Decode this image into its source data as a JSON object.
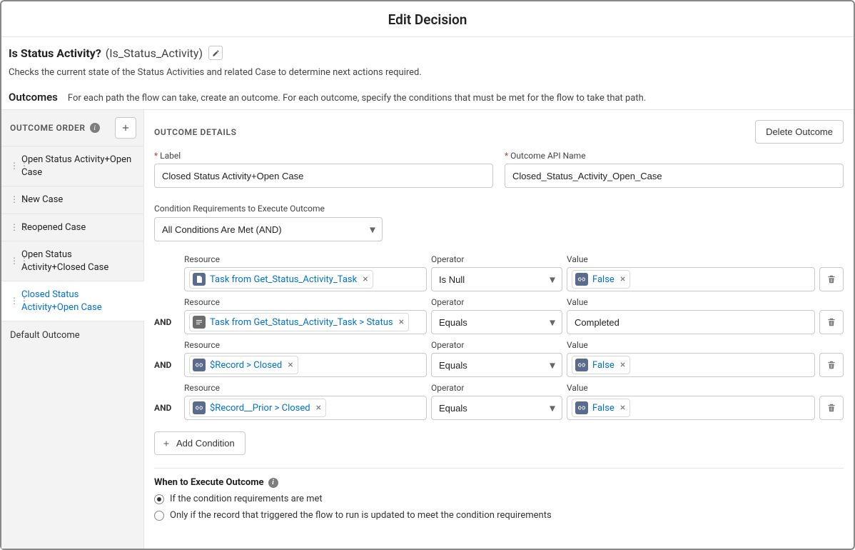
{
  "title": "Edit Decision",
  "decision": {
    "label": "Is Status Activity?",
    "apiName": "(Is_Status_Activity)",
    "description": "Checks the current state of the Status Activities and related Case to determine next actions required."
  },
  "outcomesSection": {
    "heading": "Outcomes",
    "help": "For each path the flow can take, create an outcome. For each outcome, specify the conditions that must be met for the flow to take that path."
  },
  "sidebar": {
    "heading": "OUTCOME ORDER",
    "items": [
      {
        "label": "Open Status Activity+Open Case"
      },
      {
        "label": "New Case"
      },
      {
        "label": "Reopened Case"
      },
      {
        "label": "Open Status Activity+Closed Case"
      },
      {
        "label": "Closed Status Activity+Open Case"
      }
    ],
    "selectedIndex": 4,
    "defaultLabel": "Default Outcome"
  },
  "details": {
    "heading": "OUTCOME DETAILS",
    "deleteLabel": "Delete Outcome",
    "labelField": {
      "label": "Label",
      "value": "Closed Status Activity+Open Case"
    },
    "apiField": {
      "label": "Outcome API Name",
      "value": "Closed_Status_Activity_Open_Case"
    },
    "conditionReq": {
      "label": "Condition Requirements to Execute Outcome",
      "value": "All Conditions Are Met (AND)"
    },
    "columns": {
      "resource": "Resource",
      "operator": "Operator",
      "value": "Value"
    },
    "andLabel": "AND",
    "conditions": [
      {
        "resource": {
          "icon": "record",
          "text": "Task from Get_Status_Activity_Task"
        },
        "operator": "Is Null",
        "value": {
          "type": "pill",
          "icon": "link",
          "text": "False"
        }
      },
      {
        "resource": {
          "icon": "field",
          "text": "Task from Get_Status_Activity_Task > Status"
        },
        "operator": "Equals",
        "value": {
          "type": "text",
          "text": "Completed"
        }
      },
      {
        "resource": {
          "icon": "link",
          "text": "$Record > Closed"
        },
        "operator": "Equals",
        "value": {
          "type": "pill",
          "icon": "link",
          "text": "False"
        }
      },
      {
        "resource": {
          "icon": "link",
          "text": "$Record__Prior > Closed"
        },
        "operator": "Equals",
        "value": {
          "type": "pill",
          "icon": "link",
          "text": "False"
        }
      }
    ],
    "addCondition": "Add Condition",
    "whenTitle": "When to Execute Outcome",
    "radios": [
      {
        "label": "If the condition requirements are met",
        "checked": true
      },
      {
        "label": "Only if the record that triggered the flow to run is updated to meet the condition requirements",
        "checked": false
      }
    ]
  },
  "colors": {
    "link": "#0070d2",
    "border": "#c9c9c9",
    "sidebarBg": "#f3f3f3"
  }
}
